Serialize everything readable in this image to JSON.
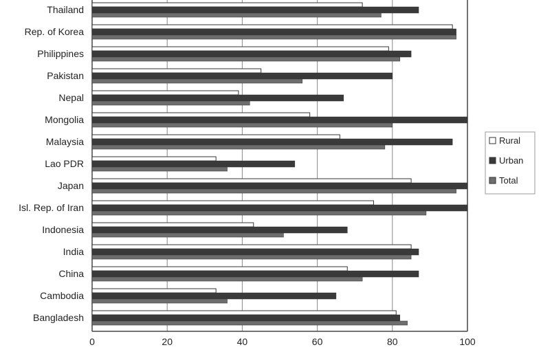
{
  "chart_data": {
    "type": "bar",
    "orientation": "horizontal",
    "categories": [
      "Thailand",
      "Rep. of Korea",
      "Philippines",
      "Pakistan",
      "Nepal",
      "Mongolia",
      "Malaysia",
      "Lao PDR",
      "Japan",
      "Isl. Rep. of Iran",
      "Indonesia",
      "India",
      "China",
      "Cambodia",
      "Bangladesh"
    ],
    "series": [
      {
        "name": "Rural",
        "color": "#ffffff",
        "values": [
          72,
          96,
          79,
          45,
          39,
          58,
          66,
          33,
          85,
          75,
          43,
          85,
          68,
          33,
          81
        ]
      },
      {
        "name": "Urban",
        "color": "#3a3a3a",
        "values": [
          87,
          97,
          85,
          80,
          67,
          100,
          96,
          54,
          100,
          100,
          68,
          87,
          87,
          65,
          82
        ]
      },
      {
        "name": "Total",
        "color": "#6e6e6e",
        "values": [
          77,
          97,
          82,
          56,
          42,
          80,
          78,
          36,
          97,
          89,
          51,
          85,
          72,
          36,
          84
        ]
      }
    ],
    "xlim": [
      0,
      100
    ],
    "xticks": [
      "0",
      "20",
      "40",
      "60",
      "80",
      "100"
    ],
    "grid": true,
    "legend": "right",
    "title": "",
    "xlabel": "",
    "ylabel": ""
  }
}
